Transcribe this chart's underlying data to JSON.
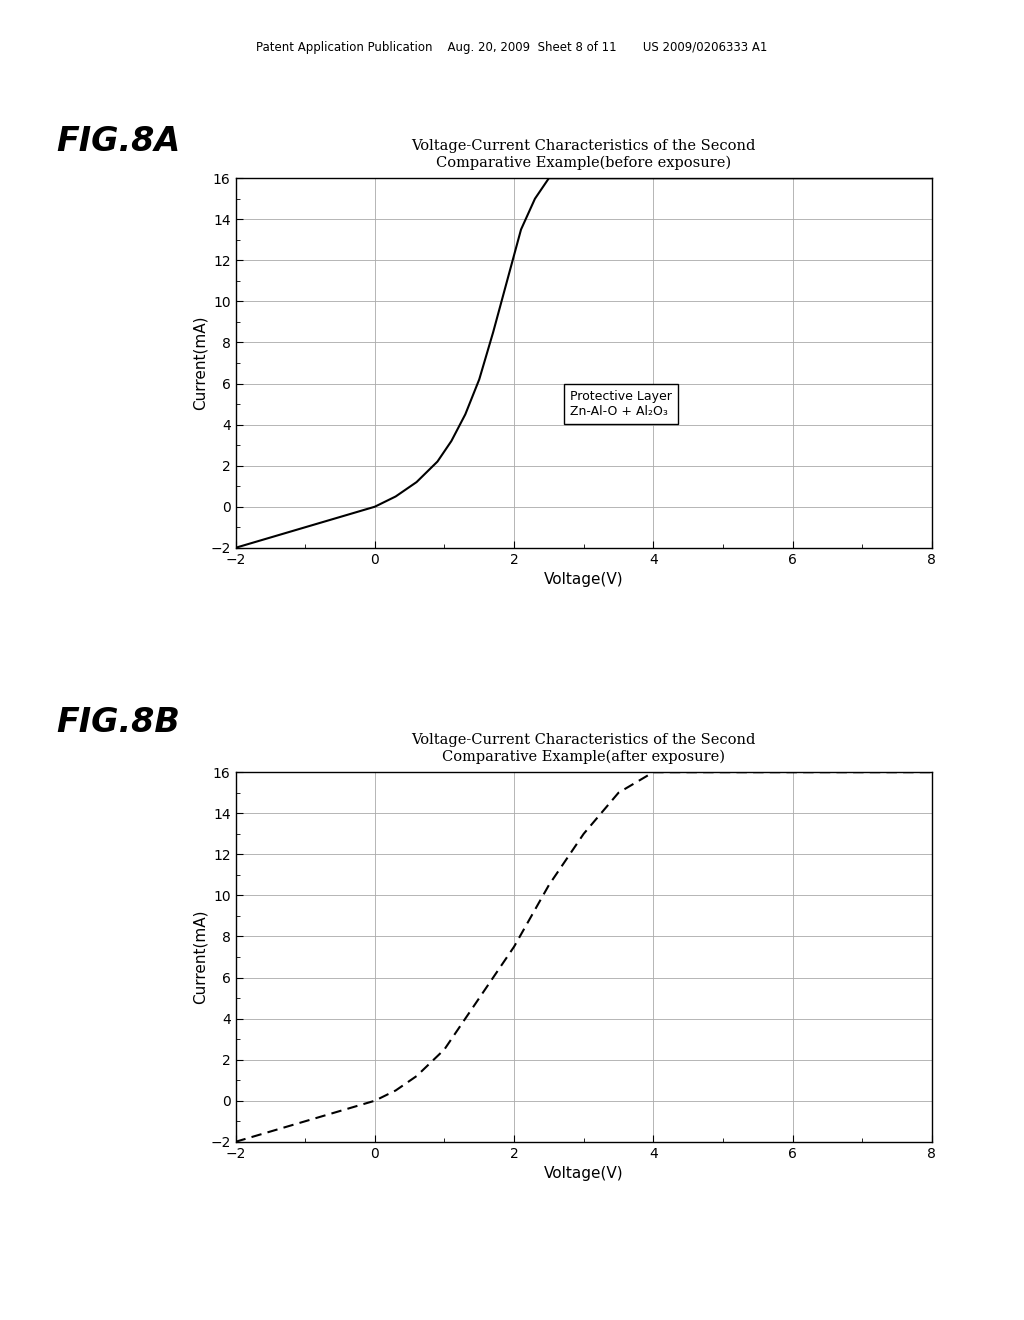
{
  "background_color": "#ffffff",
  "header_text": "Patent Application Publication    Aug. 20, 2009  Sheet 8 of 11       US 2009/0206333 A1",
  "fig8a_label": "FIG.8A",
  "fig8b_label": "FIG.8B",
  "title_8a_line1": "Voltage-Current Characteristics of the Second",
  "title_8a_line2": "Comparative Example(before exposure)",
  "title_8b_line1": "Voltage-Current Characteristics of the Second",
  "title_8b_line2": "Comparative Example(after exposure)",
  "xlabel": "Voltage(V)",
  "ylabel": "Current(mA)",
  "xlim": [
    -2,
    8
  ],
  "ylim": [
    -2,
    16
  ],
  "xticks": [
    -2,
    0,
    2,
    4,
    6,
    8
  ],
  "yticks": [
    -2,
    0,
    2,
    4,
    6,
    8,
    10,
    12,
    14,
    16
  ],
  "curve_8a_x": [
    -2.0,
    -1.5,
    -1.0,
    -0.5,
    0.0,
    0.3,
    0.6,
    0.9,
    1.1,
    1.3,
    1.5,
    1.7,
    1.9,
    2.1,
    2.3,
    2.5,
    3.0,
    4.0,
    6.0,
    8.0
  ],
  "curve_8a_y": [
    -2.0,
    -1.5,
    -1.0,
    -0.5,
    0.0,
    0.5,
    1.2,
    2.2,
    3.2,
    4.5,
    6.2,
    8.5,
    11.0,
    13.5,
    15.0,
    16.0,
    16.0,
    16.0,
    16.0,
    16.0
  ],
  "curve_8b_x": [
    -2.0,
    -1.5,
    -1.0,
    -0.5,
    0.0,
    0.3,
    0.6,
    1.0,
    1.5,
    2.0,
    2.5,
    3.0,
    3.5,
    4.0,
    6.0,
    8.0
  ],
  "curve_8b_y": [
    -2.0,
    -1.5,
    -1.0,
    -0.5,
    0.0,
    0.5,
    1.2,
    2.5,
    5.0,
    7.5,
    10.5,
    13.0,
    15.0,
    16.0,
    16.0,
    16.0
  ],
  "legend_title": "Protective Layer",
  "legend_formula": "Zn-Al-O + Al₂O₃",
  "curve_color": "#000000",
  "grid_color": "#aaaaaa",
  "tick_label_fontsize": 10,
  "axis_label_fontsize": 11,
  "title_fontsize": 10.5
}
